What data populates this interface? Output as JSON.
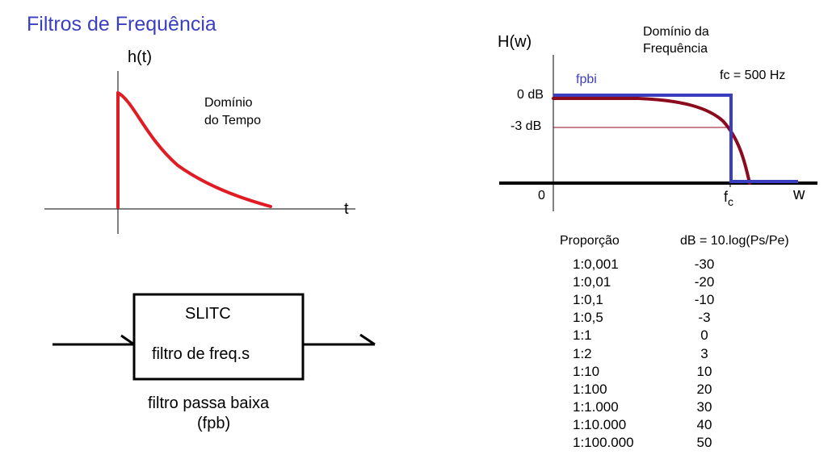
{
  "title": "Filtros de Frequência",
  "time_plot": {
    "ylabel": "h(t)",
    "xlabel": "t",
    "caption_line1": "Domínio",
    "caption_line2": "do Tempo",
    "curve_color": "#e01b24"
  },
  "freq_plot": {
    "ylabel": "H(w)",
    "xlabel": "w",
    "caption_line1": "Domínio da",
    "caption_line2": "Frequência",
    "ideal_label": "fpbi",
    "fc_label": "fc = 500 Hz",
    "level_0db": "0 dB",
    "level_3db": "-3 dB",
    "origin": "0",
    "fc_tick_main": "f",
    "fc_tick_sub": "c",
    "ideal_color": "#3b3fbf",
    "real_color": "#8b0a1e"
  },
  "block": {
    "line1": "SLITC",
    "line2": "filtro de freq.s",
    "caption_line1": "filtro passa baixa",
    "caption_line2": "(fpb)"
  },
  "table": {
    "header_ratio": "Proporção",
    "header_db": "dB = 10.log(Ps/Pe)",
    "rows": [
      {
        "ratio": "1:0,001",
        "db": "-30"
      },
      {
        "ratio": "1:0,01",
        "db": "-20"
      },
      {
        "ratio": "1:0,1",
        "db": "-10"
      },
      {
        "ratio": "1:0,5",
        "db": "-3"
      },
      {
        "ratio": "1:1",
        "db": "0"
      },
      {
        "ratio": "1:2",
        "db": "3"
      },
      {
        "ratio": "1:10",
        "db": "10"
      },
      {
        "ratio": "1:100",
        "db": "20"
      },
      {
        "ratio": "1:1.000",
        "db": "30"
      },
      {
        "ratio": "1:10.000",
        "db": "40"
      },
      {
        "ratio": "1:100.000",
        "db": "50"
      }
    ]
  }
}
